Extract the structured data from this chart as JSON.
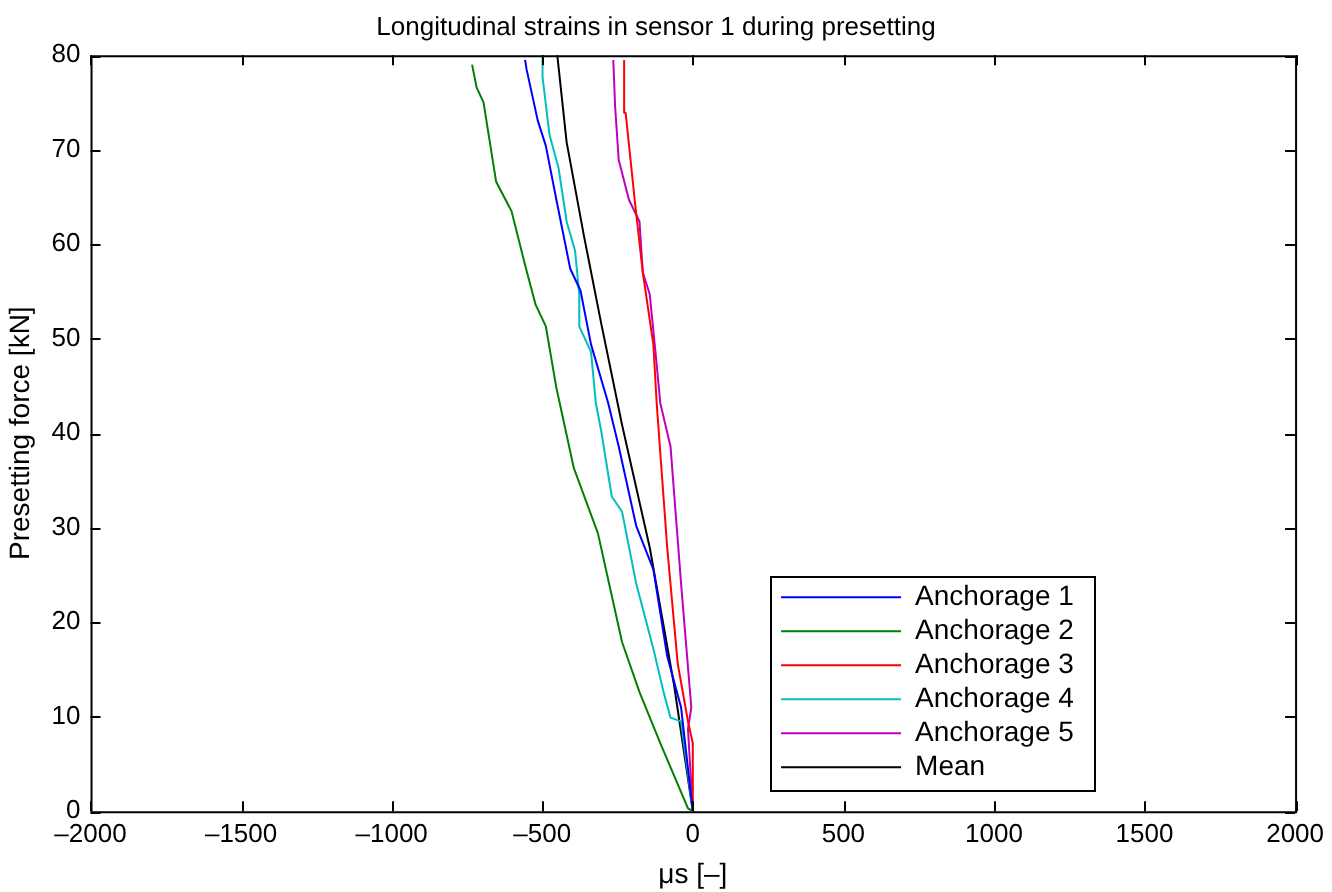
{
  "chart_data": {
    "type": "line",
    "title": "Longitudinal strains in sensor 1 during presetting",
    "xlabel": "μs [–]",
    "ylabel": "Presetting force [kN]",
    "xlim": [
      -2000,
      2000
    ],
    "xticks": [
      {
        "value": -2000,
        "label": "–2000"
      },
      {
        "value": -1500,
        "label": "–1500"
      },
      {
        "value": -1000,
        "label": "–1000"
      },
      {
        "value": -500,
        "label": "–500"
      },
      0,
      500,
      1000,
      1500,
      2000
    ],
    "ylim": [
      0,
      80
    ],
    "yticks": [
      0,
      10,
      20,
      30,
      40,
      50,
      60,
      70,
      80
    ],
    "grid": false,
    "legend": "bottom right",
    "series": [
      {
        "name": "Anchorage 1",
        "color": "#0000ff",
        "x": [
          0,
          -39,
          -85,
          -131,
          -188,
          -246,
          -281,
          -338,
          -373,
          -407,
          -453,
          -488,
          -515,
          -552,
          -557
        ],
        "values": [
          0,
          11,
          16.4,
          25.6,
          30.2,
          38.6,
          43.2,
          49.4,
          55.1,
          57.4,
          64.7,
          70.4,
          73.1,
          78.5,
          79.5
        ]
      },
      {
        "name": "Anchorage 2",
        "color": "#008000",
        "x": [
          0,
          -16,
          -108,
          -177,
          -235,
          -315,
          -395,
          -442,
          -453,
          -488,
          -522,
          -557,
          -602,
          -653,
          -695,
          -718,
          -733
        ],
        "values": [
          0,
          0.3,
          7.2,
          12.6,
          17.9,
          29.4,
          36.3,
          43.2,
          44.8,
          51.3,
          53.6,
          57.8,
          63.5,
          66.6,
          75,
          76.6,
          79
        ]
      },
      {
        "name": "Anchorage 3",
        "color": "#ff0000",
        "x": [
          0,
          0,
          -16,
          -50,
          -85,
          -120,
          -131,
          -166,
          -193,
          -223,
          -228
        ],
        "values": [
          0,
          7.2,
          9.5,
          15.6,
          27.9,
          43.2,
          49.4,
          57,
          64.7,
          73.9,
          79.5
        ]
      },
      {
        "name": "Anchorage 4",
        "color": "#00bfbf",
        "x": [
          0,
          -39,
          -74,
          -97,
          -131,
          -188,
          -235,
          -269,
          -304,
          -322,
          -338,
          -377,
          -377,
          -391,
          -419,
          -446,
          -476,
          -499,
          -499
        ],
        "values": [
          0,
          9.5,
          9.9,
          12.6,
          17.2,
          24.1,
          31.7,
          33.3,
          40.2,
          43.2,
          48.6,
          51.3,
          54.7,
          59.3,
          62.4,
          68.1,
          71.6,
          77.7,
          80
        ]
      },
      {
        "name": "Anchorage 5",
        "color": "#bf00bf",
        "x": [
          0,
          -16,
          -5,
          -39,
          -74,
          -108,
          -124,
          -143,
          -166,
          -177,
          -212,
          -246,
          -258,
          -264
        ],
        "values": [
          0,
          8.7,
          11,
          24.1,
          38.6,
          43.2,
          48.6,
          54.7,
          57,
          62.4,
          64.7,
          68.9,
          74.6,
          79.5
        ]
      },
      {
        "name": "Mean",
        "color": "#000000",
        "x": [
          0,
          -62,
          -143,
          -235,
          -304,
          -361,
          -419,
          -450
        ],
        "values": [
          0,
          13.3,
          27.9,
          40.9,
          51.6,
          60.8,
          70.8,
          80
        ]
      }
    ]
  }
}
